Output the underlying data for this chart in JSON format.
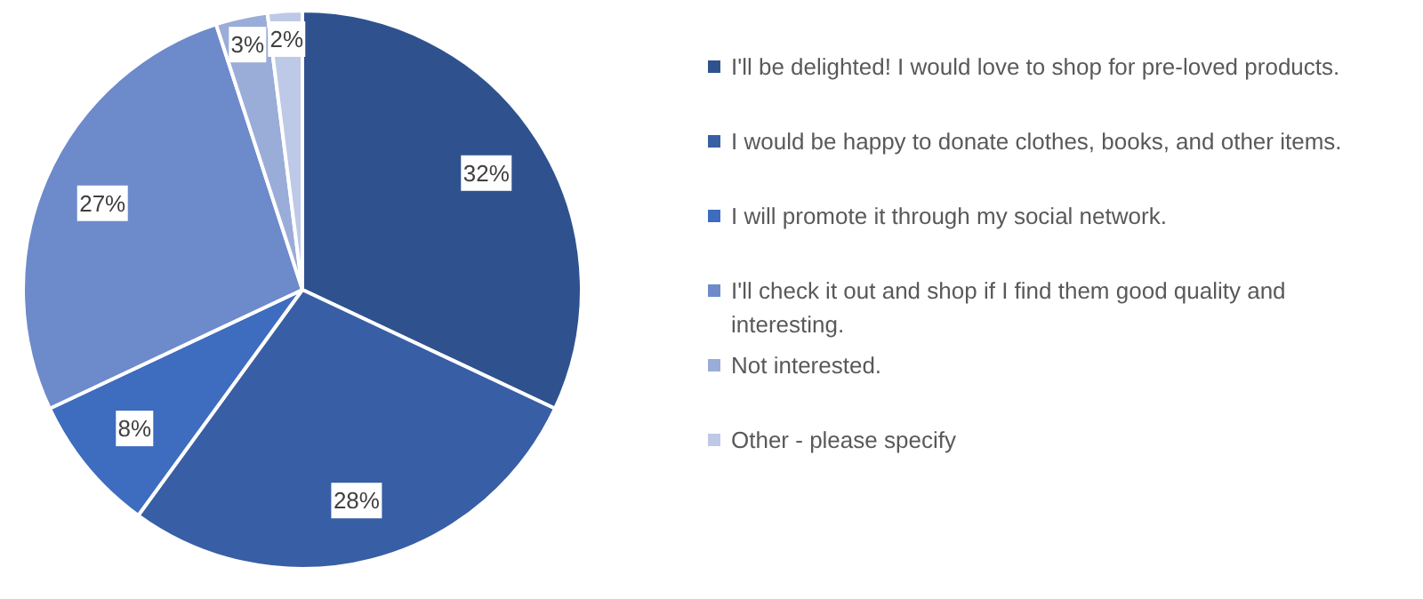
{
  "chart_data": {
    "type": "pie",
    "categories": [
      "I'll be delighted! I would love to shop for pre-loved products.",
      "I would be happy to donate clothes, books, and other items.",
      "I will promote it through my social network.",
      "I'll check it out and shop if I find them good quality and interesting.",
      "Not interested.",
      "Other - please specify"
    ],
    "values": [
      32,
      28,
      8,
      27,
      3,
      2
    ],
    "value_labels": [
      "32%",
      "28%",
      "8%",
      "27%",
      "3%",
      "2%"
    ],
    "colors": [
      "#2f528f",
      "#385ea6",
      "#3e6cbf",
      "#6d8acb",
      "#9aacd8",
      "#bdc9e7"
    ],
    "legend": "right"
  }
}
